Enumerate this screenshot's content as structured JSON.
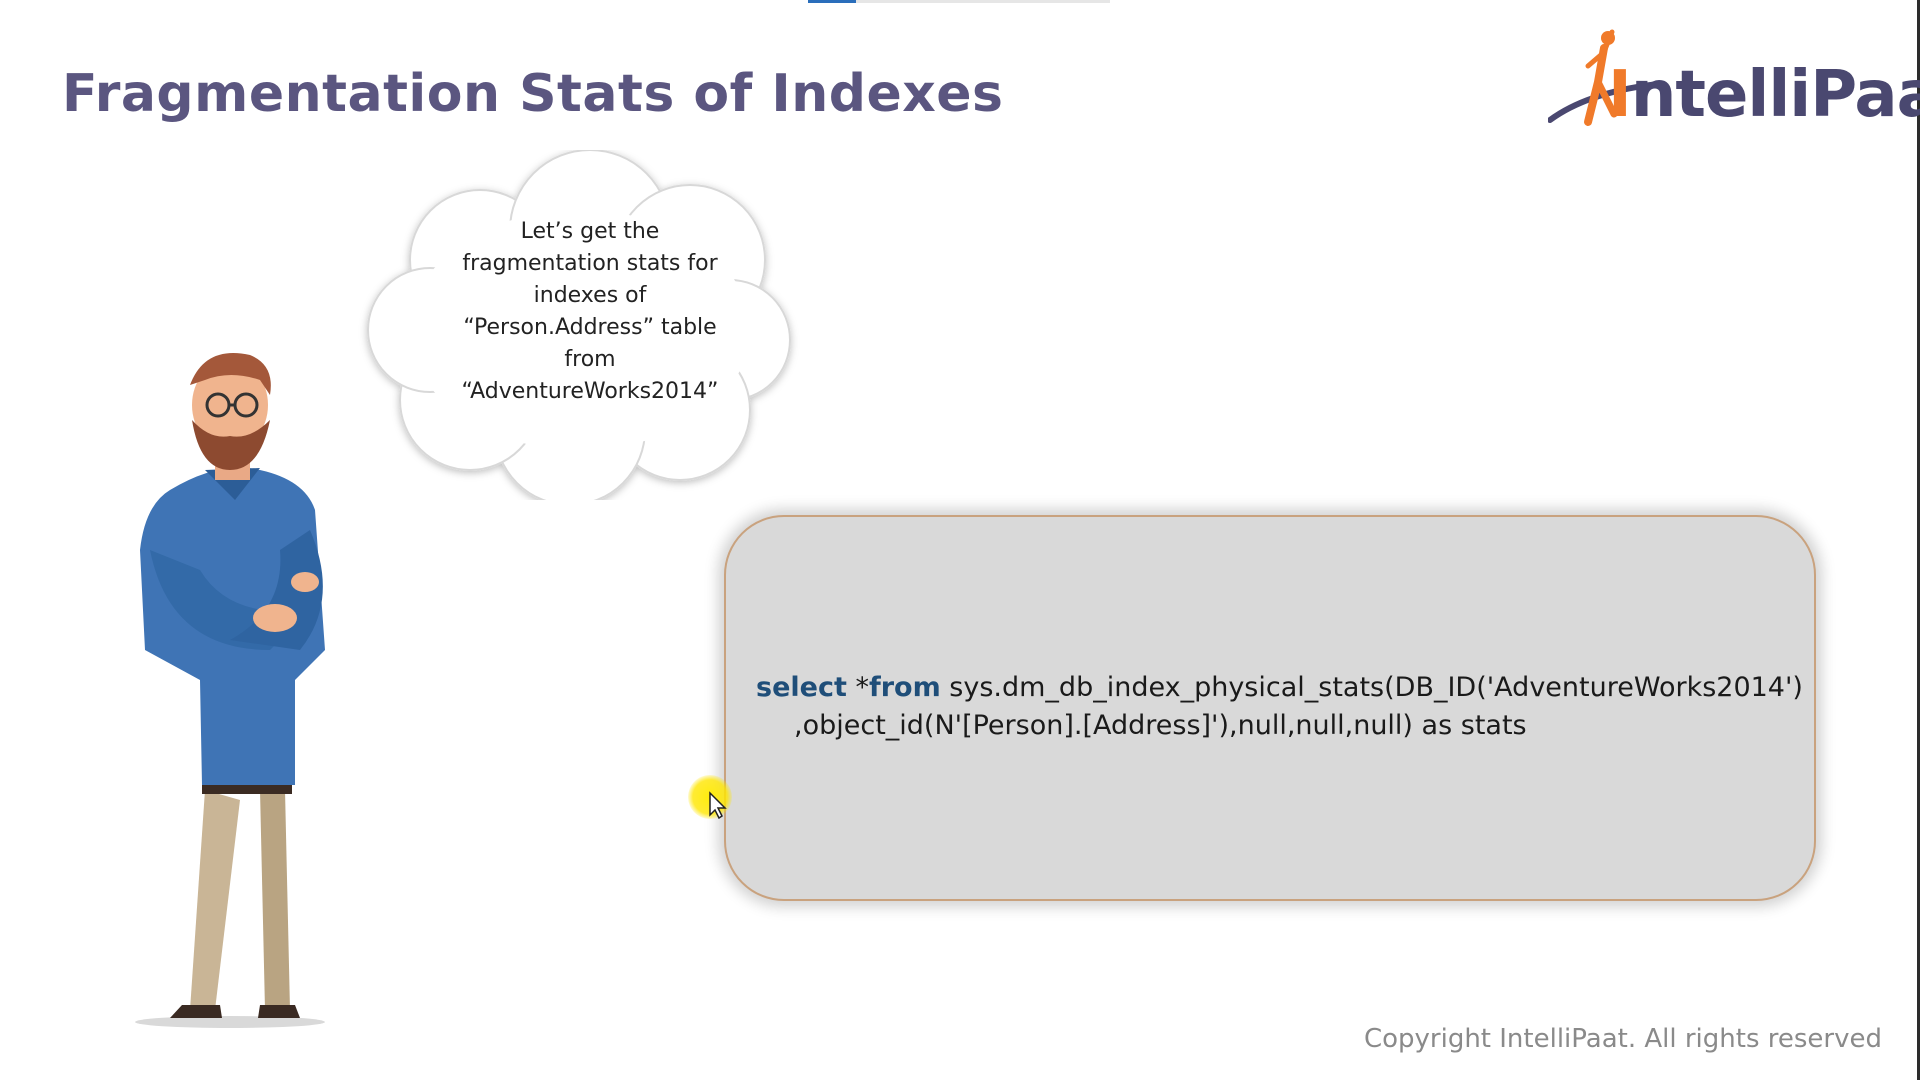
{
  "slide": {
    "title": "Fragmentation Stats of Indexes",
    "progress_fraction": 0.16
  },
  "logo": {
    "text_prefix": "I",
    "text_main": "ntelliPaat",
    "accent_color": "#f07a2a",
    "primary_color": "#4a4870"
  },
  "thought_bubble": {
    "lines": [
      "Let’s get the",
      "fragmentation stats for",
      "indexes of",
      "“Person.Address” table",
      "from",
      "“AdventureWorks2014”"
    ]
  },
  "code": {
    "kw_select": "select",
    "star": " *",
    "kw_from": "from",
    "line1_rest": " sys.dm_db_index_physical_stats(DB_ID('AdventureWorks2014')",
    "line2": ",object_id(N'[Person].[Address]'),null,null,null) as stats",
    "keyword_color": "#1f4e79"
  },
  "footer": {
    "copyright": "Copyright IntelliPaat. All rights reserved"
  },
  "icons": [
    "presenter-character",
    "thought-cloud",
    "mouse-cursor-icon",
    "intellipaat-logo"
  ]
}
